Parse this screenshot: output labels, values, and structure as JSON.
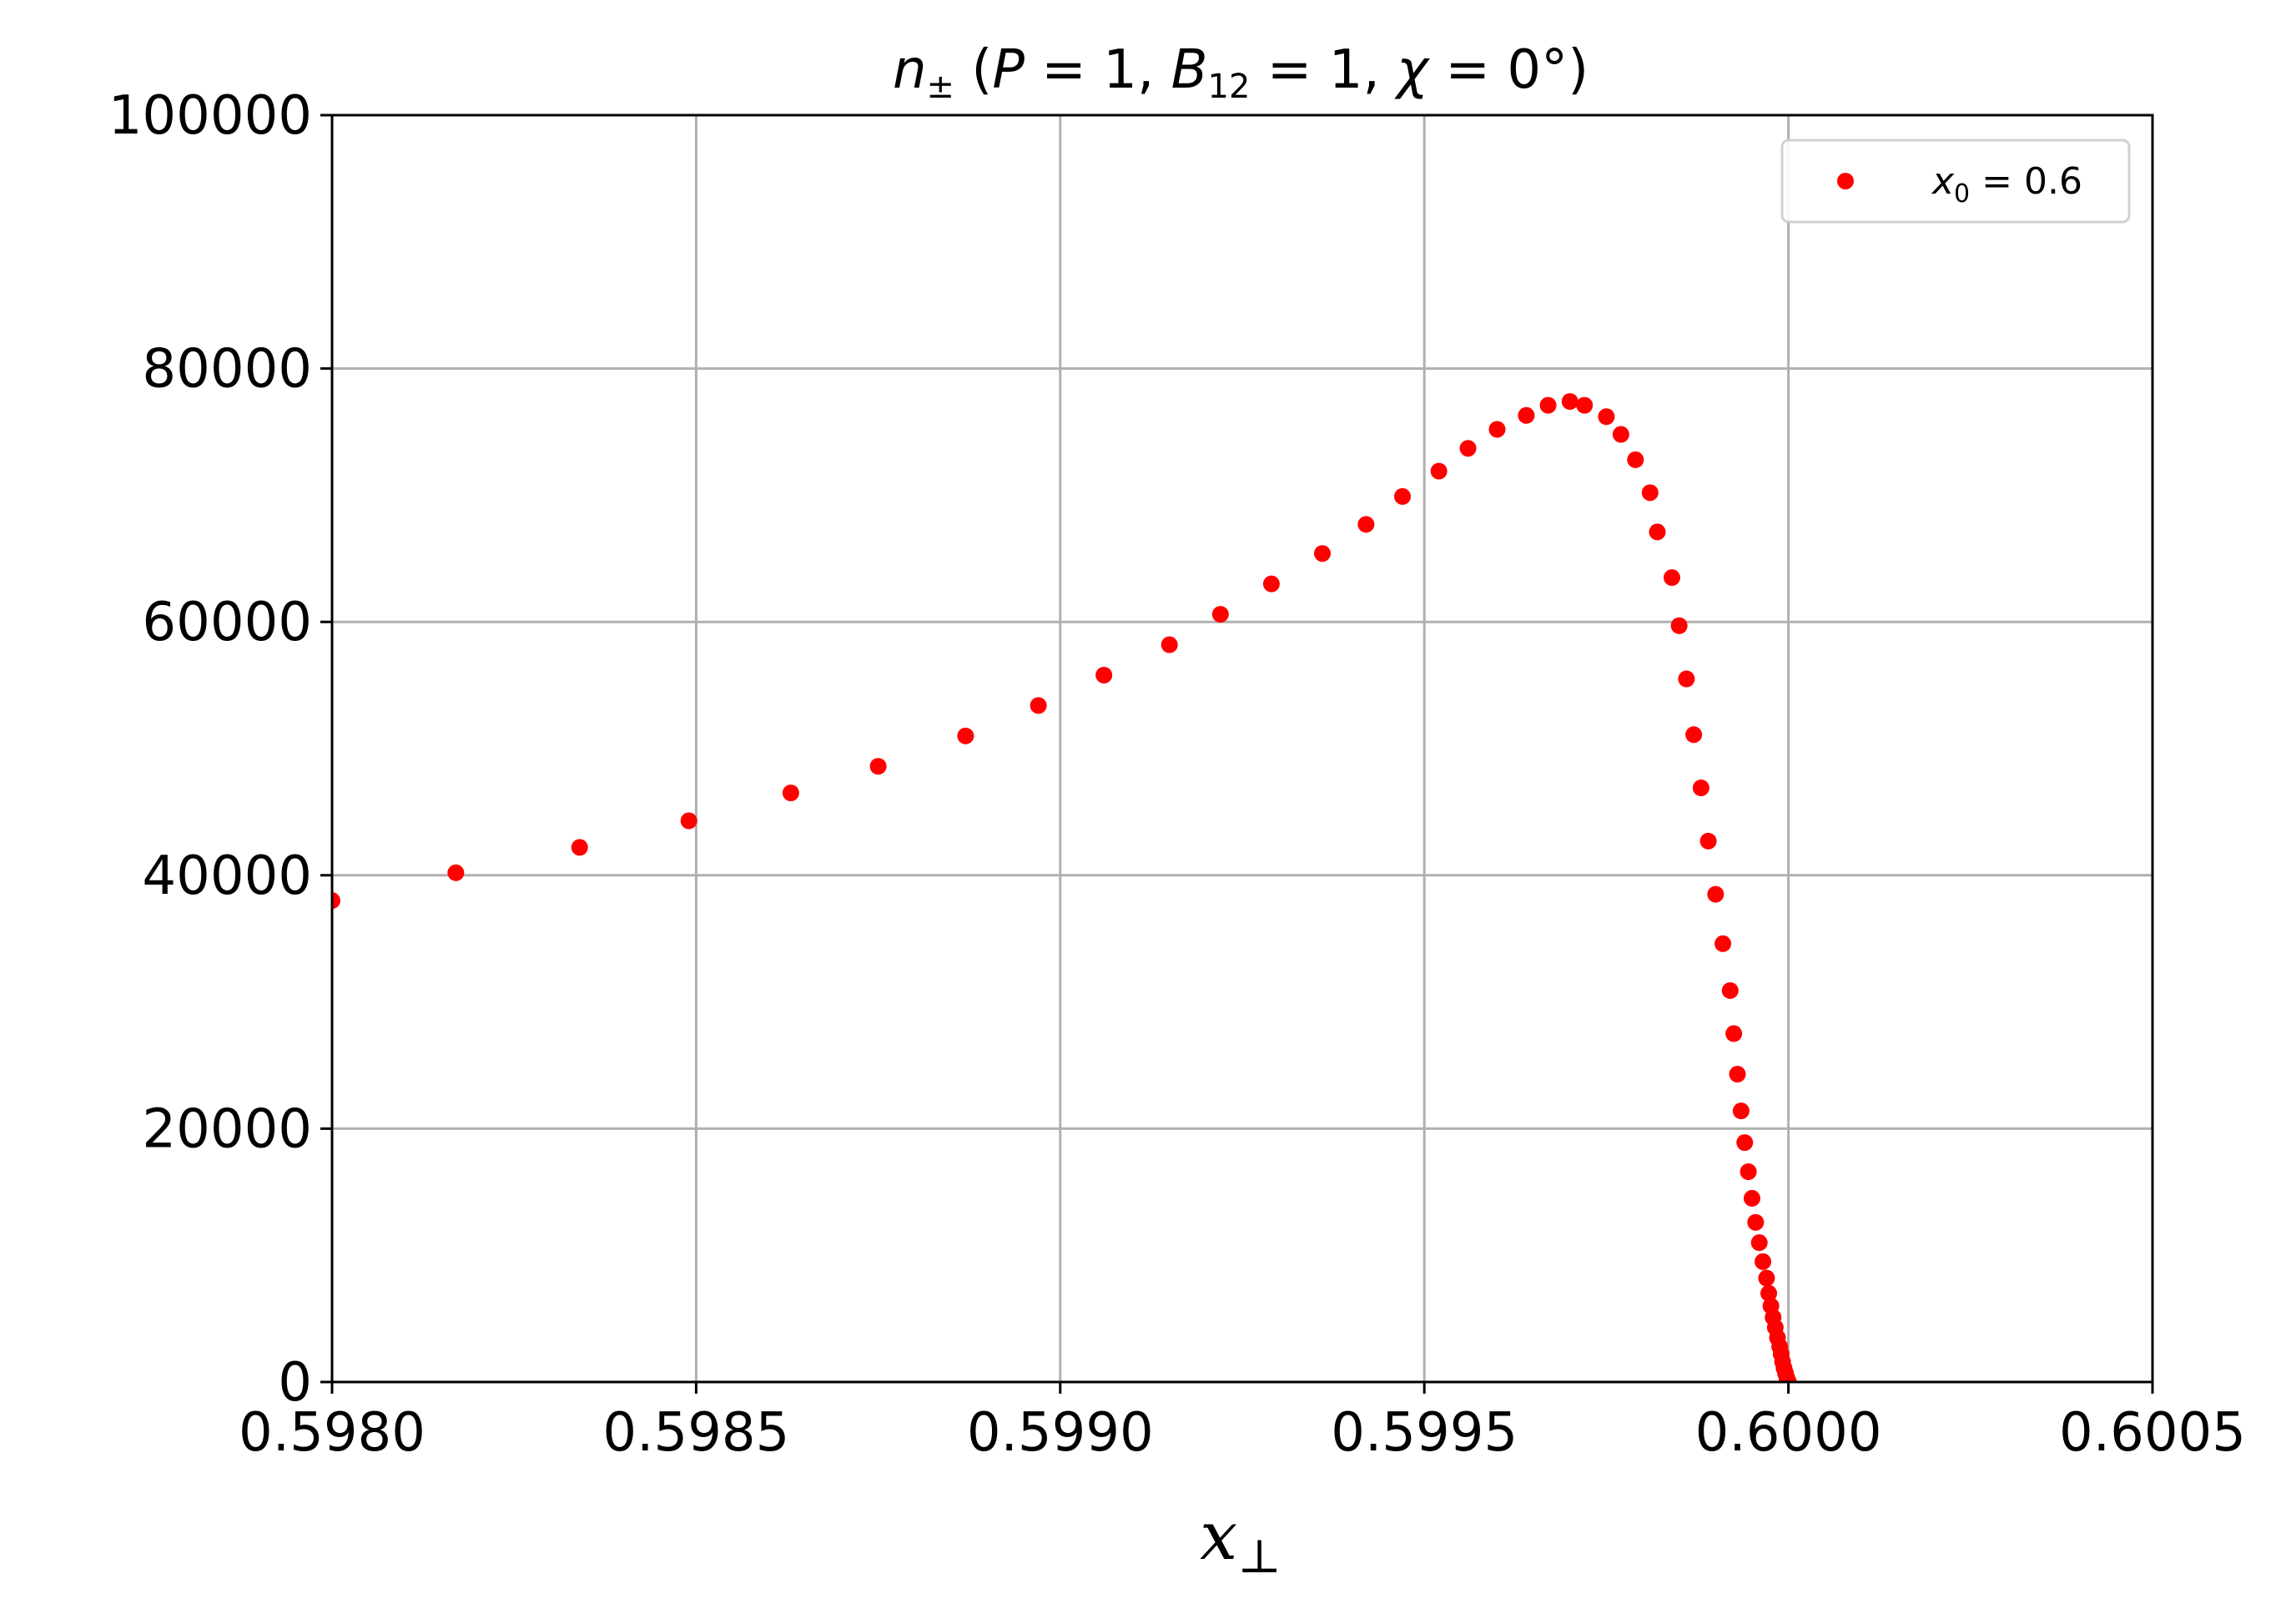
{
  "chart_data": {
    "type": "scatter",
    "title_parts": {
      "var": "n",
      "var_sub": "±",
      "open": " (",
      "p_var": "P",
      "p_eq": " = 1, ",
      "b_var": "B",
      "b_sub": "12",
      "b_eq": " = 1, ",
      "chi_var": "χ",
      "chi_eq": " = 0°)"
    },
    "xlabel_parts": {
      "var": "x",
      "sub": "⊥"
    },
    "ylabel": "",
    "xlim": [
      0.598,
      0.6005
    ],
    "ylim": [
      0,
      100000
    ],
    "x_ticks": [
      "0.5980",
      "0.5985",
      "0.5990",
      "0.5995",
      "0.6000",
      "0.6005"
    ],
    "y_ticks": [
      "0",
      "20000",
      "40000",
      "60000",
      "80000",
      "100000"
    ],
    "grid": true,
    "legend_position": "upper-right",
    "series": [
      {
        "legend_parts": {
          "var": "x",
          "sub": "0",
          "rest": " = 0.6"
        },
        "color": "#ff0000",
        "x": [
          0.598,
          0.59817,
          0.59834,
          0.59849,
          0.59863,
          0.59875,
          0.59887,
          0.59897,
          0.59906,
          0.59915,
          0.59922,
          0.59929,
          0.59936,
          0.59942,
          0.59947,
          0.59952,
          0.59956,
          0.5996,
          0.59964,
          0.59967,
          0.5997,
          0.59972,
          0.59975,
          0.59977,
          0.59979,
          0.59981,
          0.59982,
          0.59984,
          0.59985,
          0.59986,
          0.59987,
          0.59988,
          0.59989,
          0.5999,
          0.59991,
          0.59992,
          0.599925,
          0.59993,
          0.599935,
          0.59994,
          0.599945,
          0.59995,
          0.599955,
          0.59996,
          0.599965,
          0.59997,
          0.599973,
          0.599976,
          0.599979,
          0.599982,
          0.599985,
          0.599988,
          0.59999,
          0.599992,
          0.599994,
          0.599996,
          0.599998,
          0.6
        ],
        "y": [
          38000,
          40200,
          42200,
          44300,
          46500,
          48600,
          51000,
          53400,
          55800,
          58200,
          60600,
          63000,
          65400,
          67700,
          69900,
          71900,
          73700,
          75200,
          76300,
          77100,
          77400,
          77100,
          76200,
          74800,
          72800,
          70200,
          67100,
          63500,
          59700,
          55500,
          51100,
          46900,
          42700,
          38500,
          34600,
          30900,
          27500,
          24300,
          21400,
          18900,
          16600,
          14500,
          12600,
          11000,
          9500,
          8200,
          7000,
          6000,
          5100,
          4300,
          3500,
          2800,
          2200,
          1600,
          1100,
          700,
          300,
          0
        ]
      }
    ]
  }
}
